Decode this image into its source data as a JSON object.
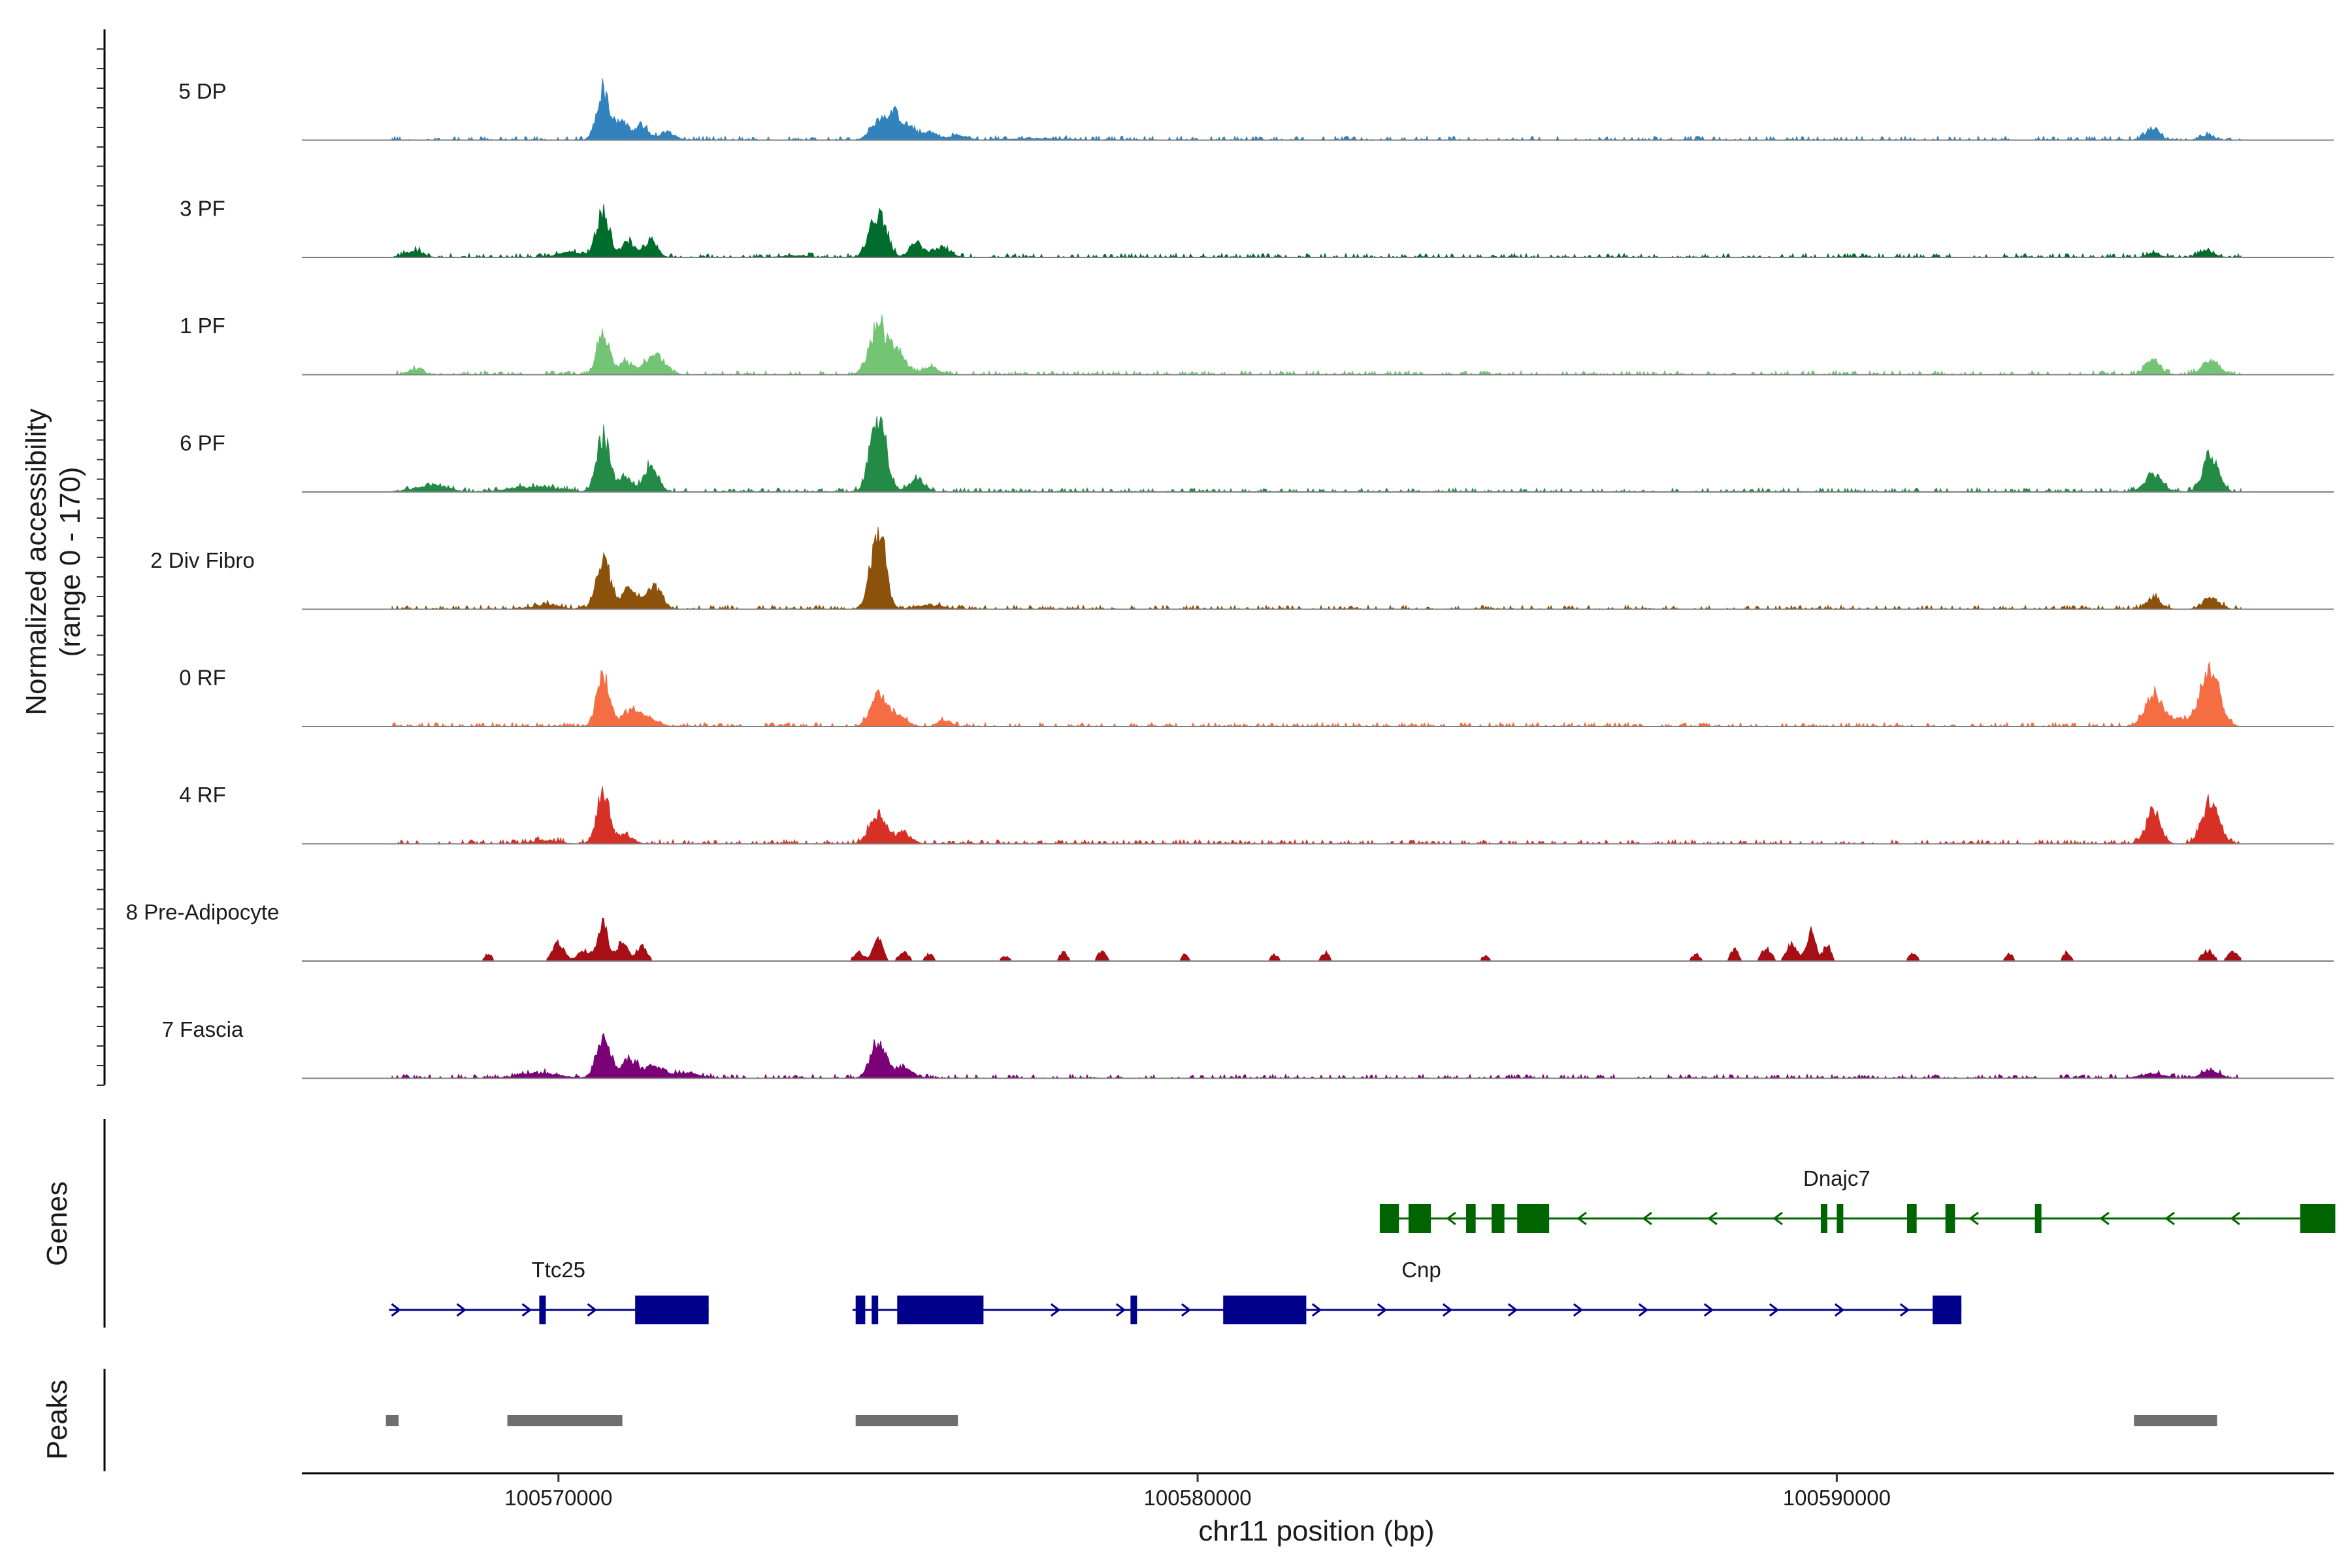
{
  "chart_data": {
    "type": "area",
    "title": "",
    "xlabel": "chr11 position (bp)",
    "ylabel_line1": "Normalized accessibility",
    "ylabel_line2": "(range 0 - 170)",
    "ylim": [
      0,
      170
    ],
    "xlim": [
      100565985,
      100597775
    ],
    "x_ticks": [
      100570000,
      100580000,
      100590000
    ],
    "x_tick_labels": [
      "100570000",
      "100580000",
      "100590000"
    ],
    "panel_titles": [
      "Genes",
      "Peaks"
    ],
    "tracks": [
      {
        "name": "5 DP",
        "color": "#3182bd",
        "peaks": [
          [
            100570700,
            0.58,
            100
          ],
          [
            100571000,
            0.22,
            90
          ],
          [
            100571300,
            0.16,
            100
          ],
          [
            100571700,
            0.1,
            120
          ],
          [
            100575000,
            0.22,
            120
          ],
          [
            100575250,
            0.3,
            110
          ],
          [
            100575500,
            0.14,
            100
          ],
          [
            100575800,
            0.1,
            110
          ],
          [
            100576250,
            0.05,
            150
          ],
          [
            100594950,
            0.14,
            100
          ],
          [
            100595800,
            0.05,
            110
          ],
          [
            100577500,
            0.02,
            400
          ]
        ]
      },
      {
        "name": "3 PF",
        "color": "#006d2c",
        "peaks": [
          [
            100570700,
            0.52,
            100
          ],
          [
            100570200,
            0.06,
            200
          ],
          [
            100571100,
            0.17,
            100
          ],
          [
            100571450,
            0.19,
            100
          ],
          [
            100575000,
            0.49,
            130
          ],
          [
            100575600,
            0.16,
            100
          ],
          [
            100576000,
            0.12,
            120
          ],
          [
            100567750,
            0.08,
            120
          ],
          [
            100594950,
            0.05,
            100
          ],
          [
            100595800,
            0.07,
            120
          ],
          [
            100573700,
            0.02,
            200
          ]
        ]
      },
      {
        "name": "1 PF",
        "color": "#74c476",
        "peaks": [
          [
            100570700,
            0.44,
            100
          ],
          [
            100571050,
            0.16,
            100
          ],
          [
            100571500,
            0.24,
            150
          ],
          [
            100575000,
            0.56,
            130
          ],
          [
            100575300,
            0.28,
            120
          ],
          [
            100575800,
            0.08,
            140
          ],
          [
            100567750,
            0.05,
            120
          ],
          [
            100594950,
            0.16,
            110
          ],
          [
            100595850,
            0.17,
            130
          ]
        ]
      },
      {
        "name": "6 PF",
        "color": "#238b45",
        "peaks": [
          [
            100570700,
            0.64,
            100
          ],
          [
            100571050,
            0.18,
            100
          ],
          [
            100571450,
            0.3,
            110
          ],
          [
            100575000,
            0.89,
            120
          ],
          [
            100575600,
            0.14,
            120
          ],
          [
            100568000,
            0.08,
            250
          ],
          [
            100569600,
            0.06,
            350
          ],
          [
            100594950,
            0.22,
            130
          ],
          [
            100595850,
            0.42,
            120
          ]
        ]
      },
      {
        "name": "2 Div Fibro",
        "color": "#8c510a",
        "peaks": [
          [
            100570700,
            0.54,
            110
          ],
          [
            100571100,
            0.24,
            120
          ],
          [
            100571500,
            0.25,
            120
          ],
          [
            100575000,
            0.96,
            110
          ],
          [
            100575800,
            0.05,
            200
          ],
          [
            100594950,
            0.13,
            110
          ],
          [
            100595850,
            0.14,
            120
          ],
          [
            100569800,
            0.05,
            200
          ]
        ]
      },
      {
        "name": "0 RF",
        "color": "#f46d43",
        "peaks": [
          [
            100570700,
            0.58,
            100
          ],
          [
            100571100,
            0.17,
            110
          ],
          [
            100571400,
            0.1,
            150
          ],
          [
            100575000,
            0.38,
            120
          ],
          [
            100575300,
            0.12,
            140
          ],
          [
            100576050,
            0.07,
            100
          ],
          [
            100594950,
            0.32,
            130
          ],
          [
            100595850,
            0.67,
            140
          ],
          [
            100595350,
            0.08,
            300
          ]
        ]
      },
      {
        "name": "4 RF",
        "color": "#d73027",
        "peaks": [
          [
            100570700,
            0.59,
            100
          ],
          [
            100571050,
            0.1,
            120
          ],
          [
            100575000,
            0.34,
            130
          ],
          [
            100575400,
            0.12,
            120
          ],
          [
            100594950,
            0.39,
            110
          ],
          [
            100595850,
            0.48,
            130
          ],
          [
            100569800,
            0.04,
            200
          ]
        ]
      },
      {
        "name": "8 Pre-Adipocyte",
        "color": "#a50f15",
        "peaks": [
          [
            100570700,
            0.42,
            80
          ],
          [
            100570000,
            0.2,
            90
          ],
          [
            100570400,
            0.12,
            100
          ],
          [
            100571000,
            0.22,
            80
          ],
          [
            100571300,
            0.18,
            80
          ],
          [
            100568900,
            0.08,
            60
          ],
          [
            100575000,
            0.26,
            70
          ],
          [
            100574700,
            0.1,
            80
          ],
          [
            100575400,
            0.1,
            80
          ],
          [
            100575800,
            0.08,
            60
          ],
          [
            100577000,
            0.05,
            80
          ],
          [
            100577900,
            0.1,
            60
          ],
          [
            100578500,
            0.12,
            60
          ],
          [
            100579800,
            0.08,
            50
          ],
          [
            100581200,
            0.08,
            60
          ],
          [
            100582000,
            0.1,
            60
          ],
          [
            100584500,
            0.06,
            60
          ],
          [
            100587800,
            0.08,
            60
          ],
          [
            100588400,
            0.14,
            60
          ],
          [
            100588900,
            0.14,
            80
          ],
          [
            100589300,
            0.2,
            80
          ],
          [
            100589600,
            0.34,
            70
          ],
          [
            100589850,
            0.18,
            60
          ],
          [
            100591200,
            0.1,
            60
          ],
          [
            100592700,
            0.08,
            60
          ],
          [
            100593600,
            0.1,
            60
          ],
          [
            100595800,
            0.12,
            90
          ],
          [
            100596200,
            0.1,
            80
          ]
        ]
      },
      {
        "name": "7 Fascia",
        "color": "#7a0177",
        "peaks": [
          [
            100570700,
            0.44,
            110
          ],
          [
            100571100,
            0.22,
            120
          ],
          [
            100571500,
            0.14,
            150
          ],
          [
            100572000,
            0.06,
            200
          ],
          [
            100575000,
            0.42,
            120
          ],
          [
            100575400,
            0.12,
            140
          ],
          [
            100569700,
            0.06,
            300
          ],
          [
            100594950,
            0.05,
            200
          ],
          [
            100595850,
            0.1,
            130
          ]
        ]
      }
    ],
    "genes": [
      {
        "name": "Ttc25",
        "strand": "+",
        "color": "#00008b",
        "start": 100567350,
        "end": 100572350,
        "exons": [
          [
            100569700,
            100569800
          ],
          [
            100571200,
            100572350
          ]
        ]
      },
      {
        "name": "Cnp",
        "strand": "+",
        "color": "#00008b",
        "start": 100574600,
        "end": 100591950,
        "exons": [
          [
            100574650,
            100574800
          ],
          [
            100574900,
            100575000
          ],
          [
            100575300,
            100576650
          ],
          [
            100578950,
            100579050
          ],
          [
            100580400,
            100581700
          ],
          [
            100591500,
            100591950
          ]
        ]
      },
      {
        "name": "Dnajc7",
        "strand": "-",
        "color": "#006400",
        "start": 100582850,
        "end": 100597800,
        "exons": [
          [
            100582850,
            100583150
          ],
          [
            100583300,
            100583650
          ],
          [
            100584200,
            100584350
          ],
          [
            100584600,
            100584800
          ],
          [
            100585000,
            100585500
          ],
          [
            100589750,
            100589850
          ],
          [
            100590000,
            100590100
          ],
          [
            100591100,
            100591250
          ],
          [
            100591700,
            100591850
          ],
          [
            100593100,
            100593200
          ],
          [
            100597250,
            100597800
          ]
        ]
      }
    ],
    "peak_regions": [
      [
        100567300,
        100567500
      ],
      [
        100569200,
        100571000
      ],
      [
        100574650,
        100576250
      ],
      [
        100594650,
        100595950
      ]
    ]
  }
}
